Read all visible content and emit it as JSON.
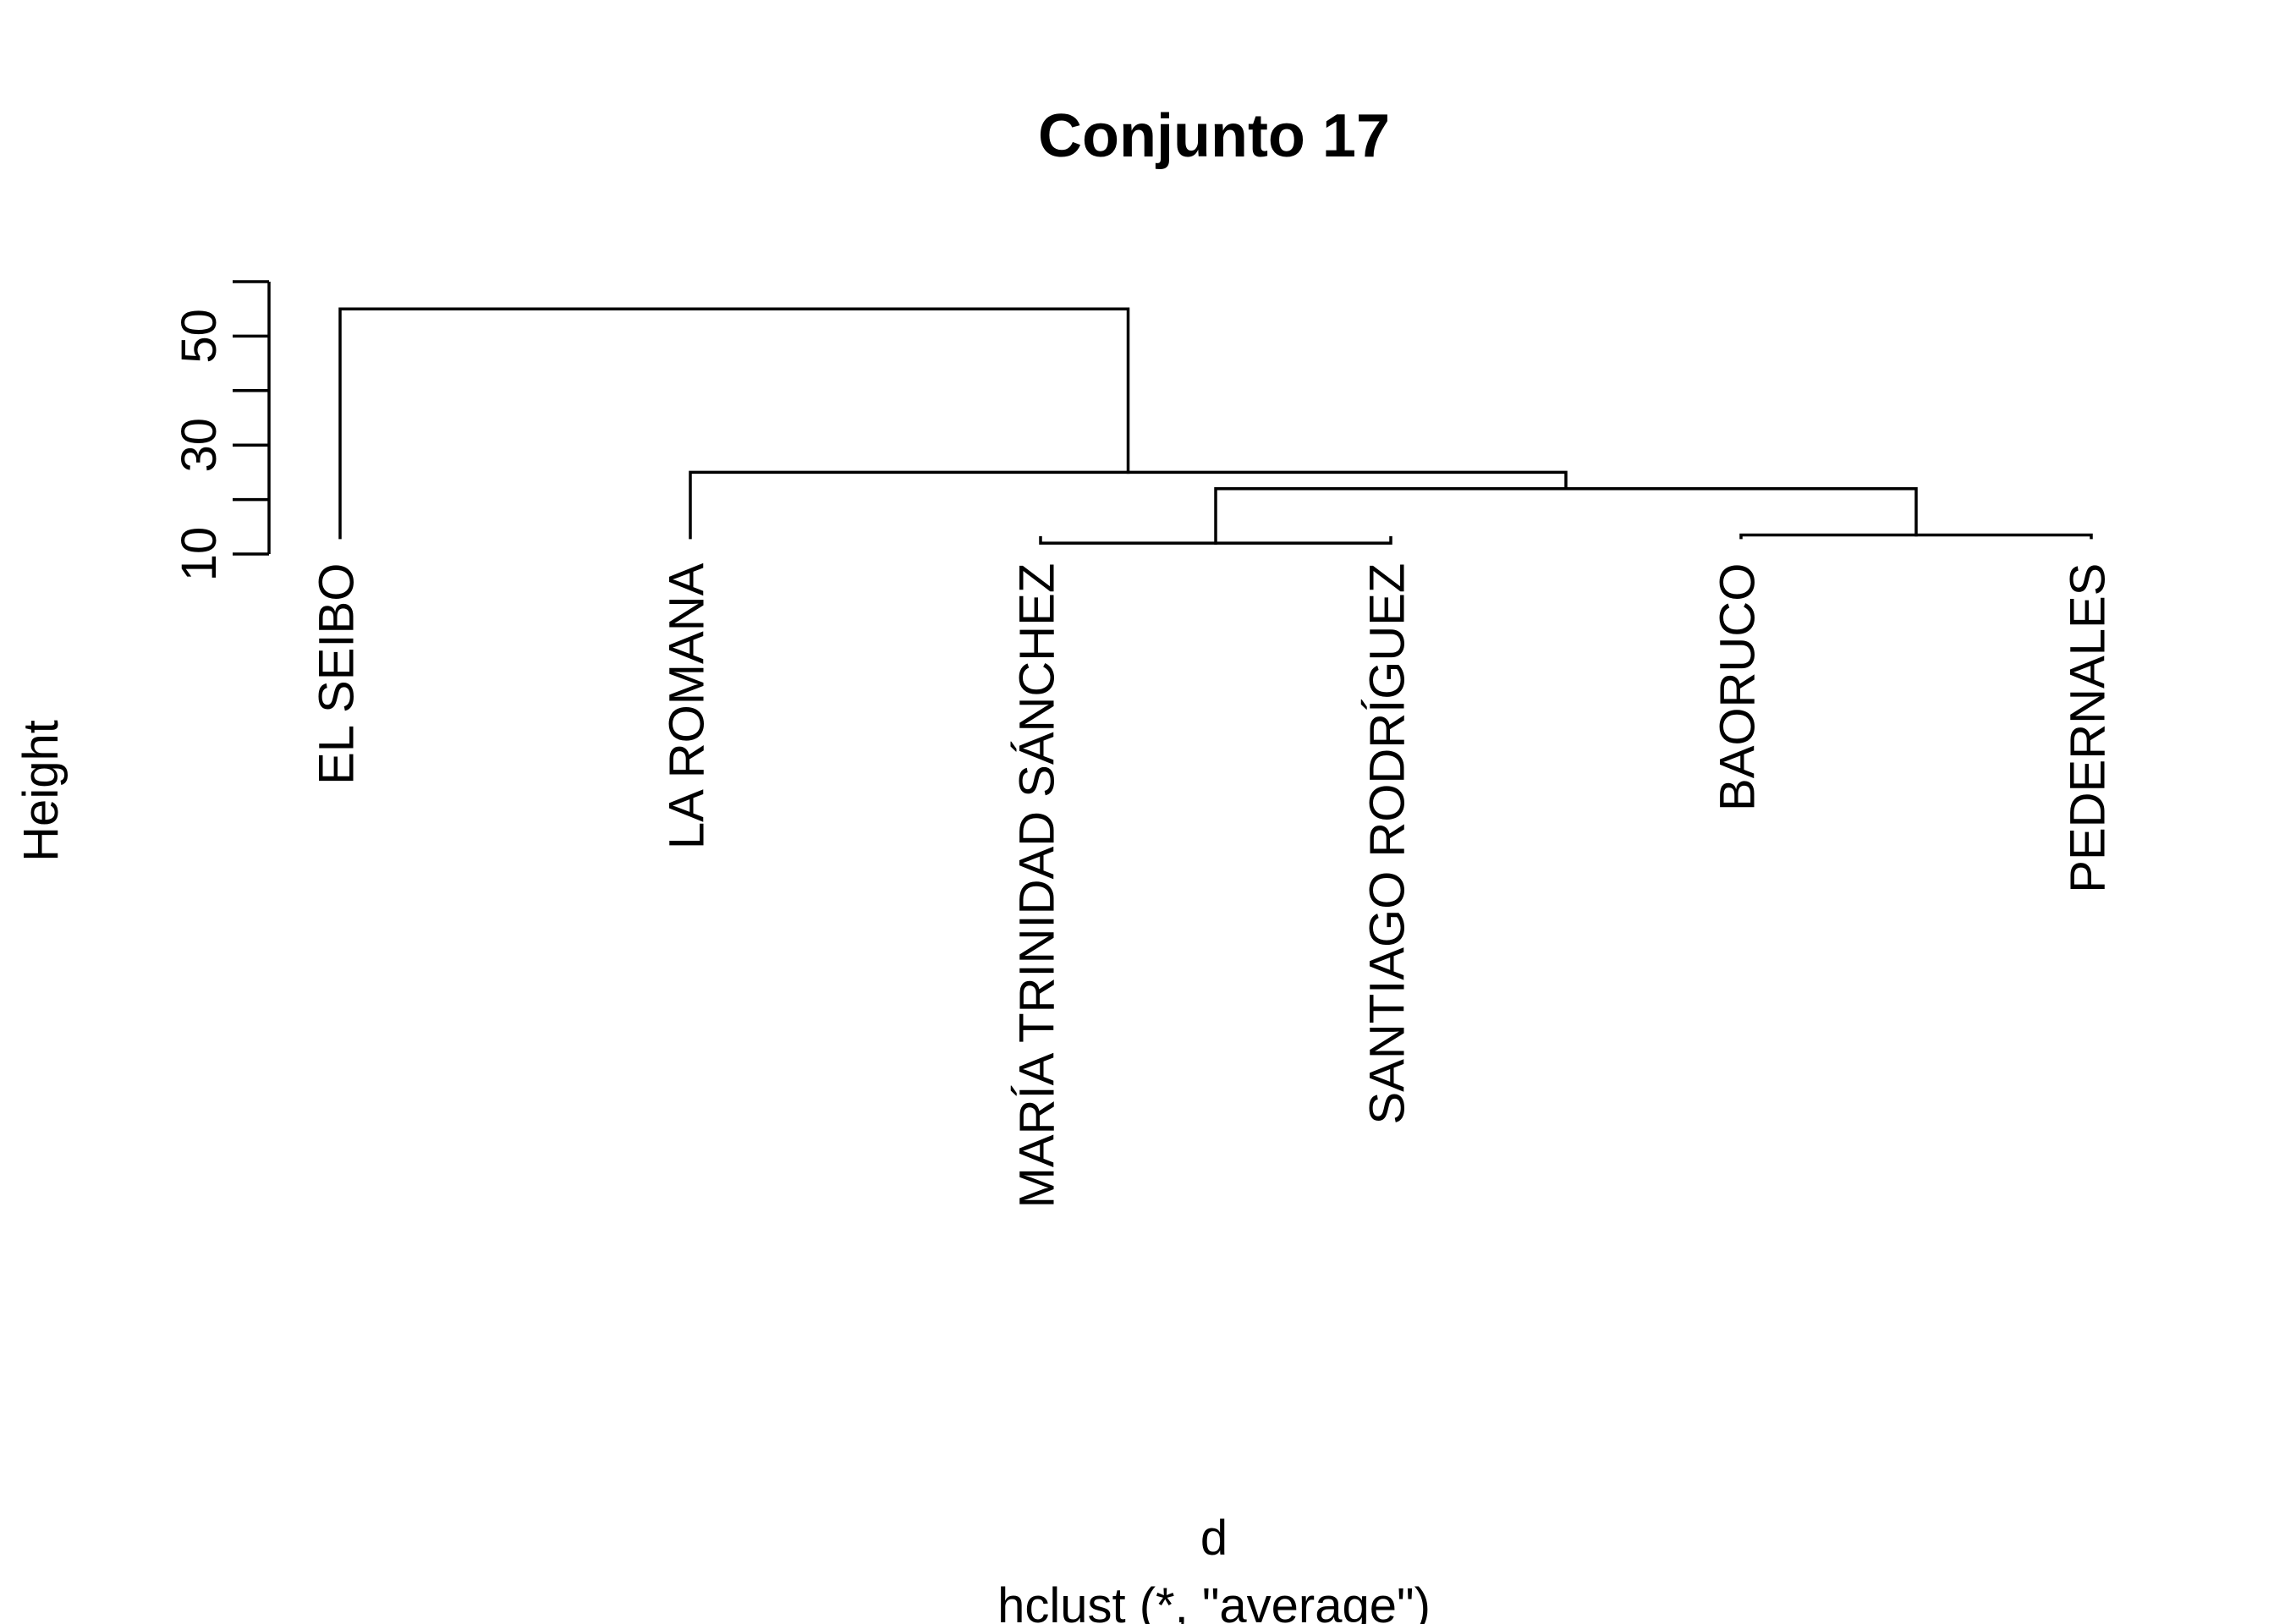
{
  "chart_data": {
    "type": "dendrogram",
    "title": "Conjunto 17",
    "xlabel": "d",
    "sub": "hclust (*, \"average\")",
    "ylabel": "Height",
    "ylim": [
      9,
      60
    ],
    "yticks": [
      10,
      20,
      30,
      40,
      50,
      60
    ],
    "ytick_labels": [
      "10",
      "",
      "30",
      "",
      "50",
      ""
    ],
    "labels": [
      "EL SEIBO",
      "LA ROMANA",
      "MARÍA TRINIDAD SÁNCHEZ",
      "SANTIAGO RODRÍGUEZ",
      "BAORUCO",
      "PEDERNALES"
    ],
    "merges": [
      {
        "left": "MARÍA TRINIDAD SÁNCHEZ",
        "right": "SANTIAGO RODRÍGUEZ",
        "height": 12.0
      },
      {
        "left": "BAORUCO",
        "right": "PEDERNALES",
        "height": 13.5
      },
      {
        "left": "cluster:MARÍA TRINIDAD SÁNCHEZ+SANTIAGO RODRÍGUEZ",
        "right": "cluster:BAORUCO+PEDERNALES",
        "height": 22.0
      },
      {
        "left": "LA ROMANA",
        "right": "cluster:MARÍA TRINIDAD SÁNCHEZ+SANTIAGO RODRÍGUEZ+BAORUCO+PEDERNALES",
        "height": 25.0
      },
      {
        "left": "EL SEIBO",
        "right": "cluster:LA ROMANA+MARÍA TRINIDAD SÁNCHEZ+SANTIAGO RODRÍGUEZ+BAORUCO+PEDERNALES",
        "height": 55.0
      }
    ],
    "leaf_height": 13.0
  }
}
